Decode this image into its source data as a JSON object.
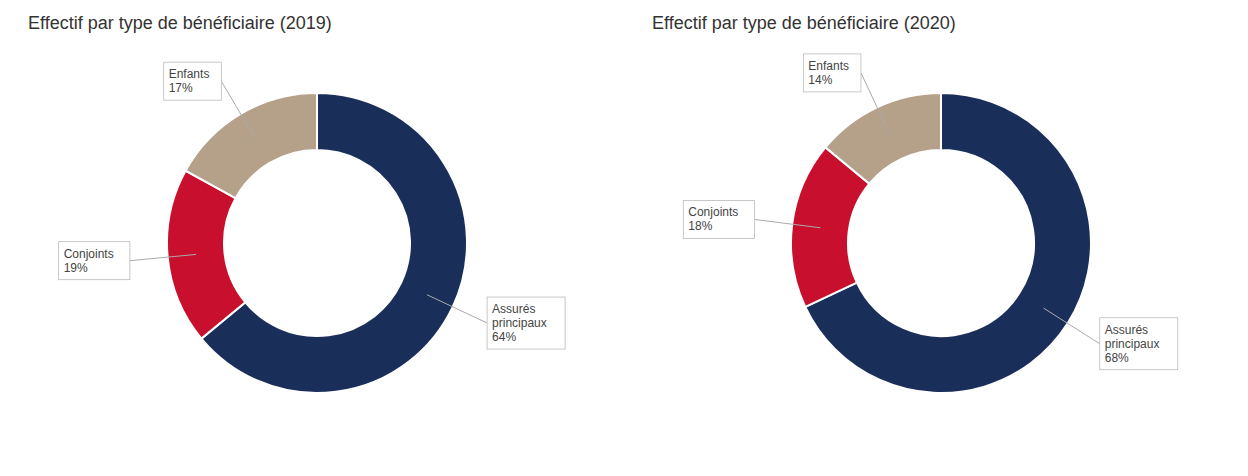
{
  "chart_data": [
    {
      "type": "donut",
      "title": "Effectif par type de bénéficiaire (2019)",
      "categories": [
        "Assurés\nprincipaux",
        "Conjoints",
        "Enfants"
      ],
      "values": [
        64,
        19,
        17
      ],
      "value_labels": [
        "64%",
        "19%",
        "17%"
      ],
      "colors": [
        "#1a2e5a",
        "#c8102e",
        "#b5a08a"
      ]
    },
    {
      "type": "donut",
      "title": "Effectif par type de bénéficiaire (2020)",
      "categories": [
        "Assurés\nprincipaux",
        "Conjoints",
        "Enfants"
      ],
      "values": [
        68,
        18,
        14
      ],
      "value_labels": [
        "68%",
        "18%",
        "14%"
      ],
      "colors": [
        "#1a2e5a",
        "#c8102e",
        "#b5a08a"
      ]
    }
  ]
}
